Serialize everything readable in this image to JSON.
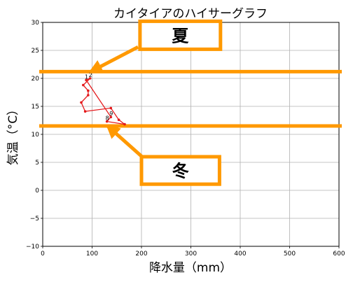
{
  "chart_data": {
    "type": "line",
    "title": "カイタイアのハイサーグラフ",
    "xlabel": "降水量（mm）",
    "ylabel": "気温（°C）",
    "xlim": [
      0,
      600
    ],
    "ylim": [
      -10,
      30
    ],
    "xticks": [
      0,
      100,
      200,
      300,
      400,
      500,
      600
    ],
    "yticks": [
      -10,
      -5,
      0,
      5,
      10,
      15,
      20,
      25,
      30
    ],
    "grid": true,
    "series": [
      {
        "color": "#e41a1c",
        "points": [
          {
            "x": 88,
            "y": 19.7,
            "label": "1"
          },
          {
            "x": 96,
            "y": 20.0,
            "label": "2"
          },
          {
            "x": 82,
            "y": 18.8,
            "label": ""
          },
          {
            "x": 92,
            "y": 17.8,
            "label": ""
          },
          {
            "x": 92,
            "y": 17.0,
            "label": ""
          },
          {
            "x": 78,
            "y": 15.7,
            "label": ""
          },
          {
            "x": 86,
            "y": 14.1,
            "label": ""
          },
          {
            "x": 138,
            "y": 14.7,
            "label": ""
          },
          {
            "x": 154,
            "y": 12.6,
            "label": ""
          },
          {
            "x": 166,
            "y": 11.8,
            "label": ""
          },
          {
            "x": 130,
            "y": 12.3,
            "label": "8"
          },
          {
            "x": 138,
            "y": 13.1,
            "label": "9"
          }
        ]
      }
    ],
    "reference_lines": [
      {
        "y": 21.2,
        "color": "#ff9900"
      },
      {
        "y": 11.5,
        "color": "#ff9900"
      }
    ],
    "annotations": [
      {
        "text": "夏",
        "box": {
          "x0": 197,
          "x1": 360,
          "y0": 25.2,
          "y1": 30.2
        },
        "arrow_from": {
          "x": 193,
          "y": 25.6
        },
        "arrow_to": {
          "x": 95,
          "y": 21.1
        }
      },
      {
        "text": "冬",
        "box": {
          "x0": 200,
          "x1": 358,
          "y0": 1.1,
          "y1": 6.0
        },
        "arrow_from": {
          "x": 200,
          "y": 6.1
        },
        "arrow_to": {
          "x": 130,
          "y": 11.6
        }
      }
    ],
    "colors": {
      "line": "#e41a1c",
      "highlight": "#ff9900",
      "grid": "#b0b0b0"
    }
  }
}
